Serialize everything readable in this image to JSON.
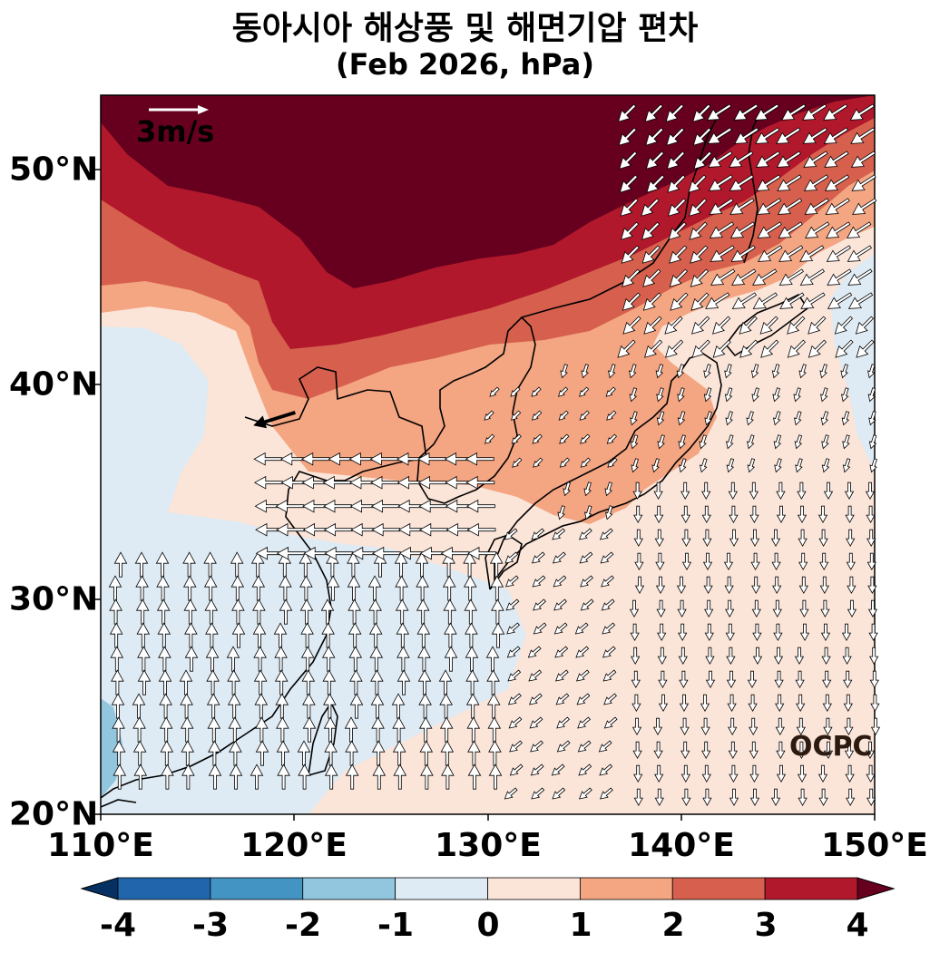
{
  "title": {
    "line1": "동아시아 해상풍 및 해면기압 편차",
    "line2": "(Feb 2026, hPa)"
  },
  "map": {
    "lon_range": [
      110,
      150
    ],
    "lat_range": [
      20,
      53.5
    ],
    "x_ticks": [
      "110°E",
      "120°E",
      "130°E",
      "140°E",
      "150°E"
    ],
    "y_ticks": [
      "20°N",
      "30°N",
      "40°N",
      "50°N"
    ],
    "reference_vector_label": "3m/s",
    "watermark": "OCPC"
  },
  "colorbar": {
    "levels": [
      "-4",
      "-3",
      "-2",
      "-1",
      "0",
      "1",
      "2",
      "3",
      "4"
    ],
    "colors": [
      "#2166ac",
      "#4393c3",
      "#92c5de",
      "#deebf4",
      "#fbe4d8",
      "#f4a582",
      "#d6604d",
      "#b2182b"
    ],
    "extend_low": "#053061",
    "extend_high": "#67001f"
  }
}
